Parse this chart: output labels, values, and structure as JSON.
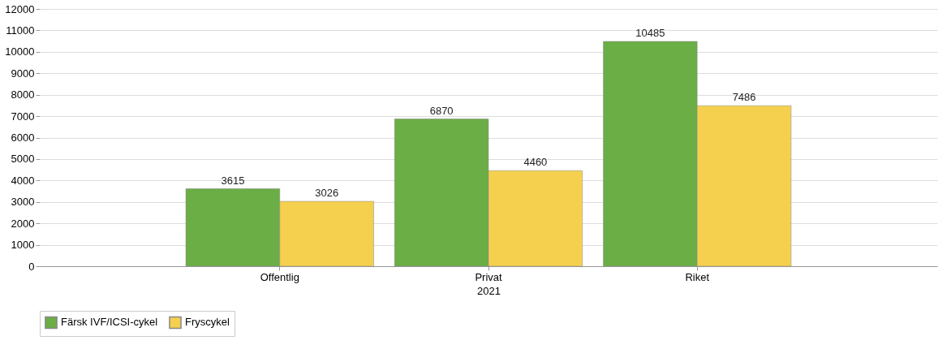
{
  "chart_data": {
    "type": "bar",
    "xlabel": "2021",
    "categories": [
      "Offentlig",
      "Privat",
      "Riket"
    ],
    "series": [
      {
        "name": "Färsk IVF/ICSI-cykel",
        "color": "#6aae45",
        "values": [
          3615,
          6870,
          10485
        ]
      },
      {
        "name": "Fryscykel",
        "color": "#f5d04f",
        "values": [
          3026,
          4460,
          7486
        ]
      }
    ],
    "ylim": [
      0,
      12000
    ],
    "yticks": [
      0,
      1000,
      2000,
      3000,
      4000,
      5000,
      6000,
      7000,
      8000,
      9000,
      10000,
      11000,
      12000
    ],
    "grid": "y",
    "legend": "bottom",
    "data_labels": true
  }
}
